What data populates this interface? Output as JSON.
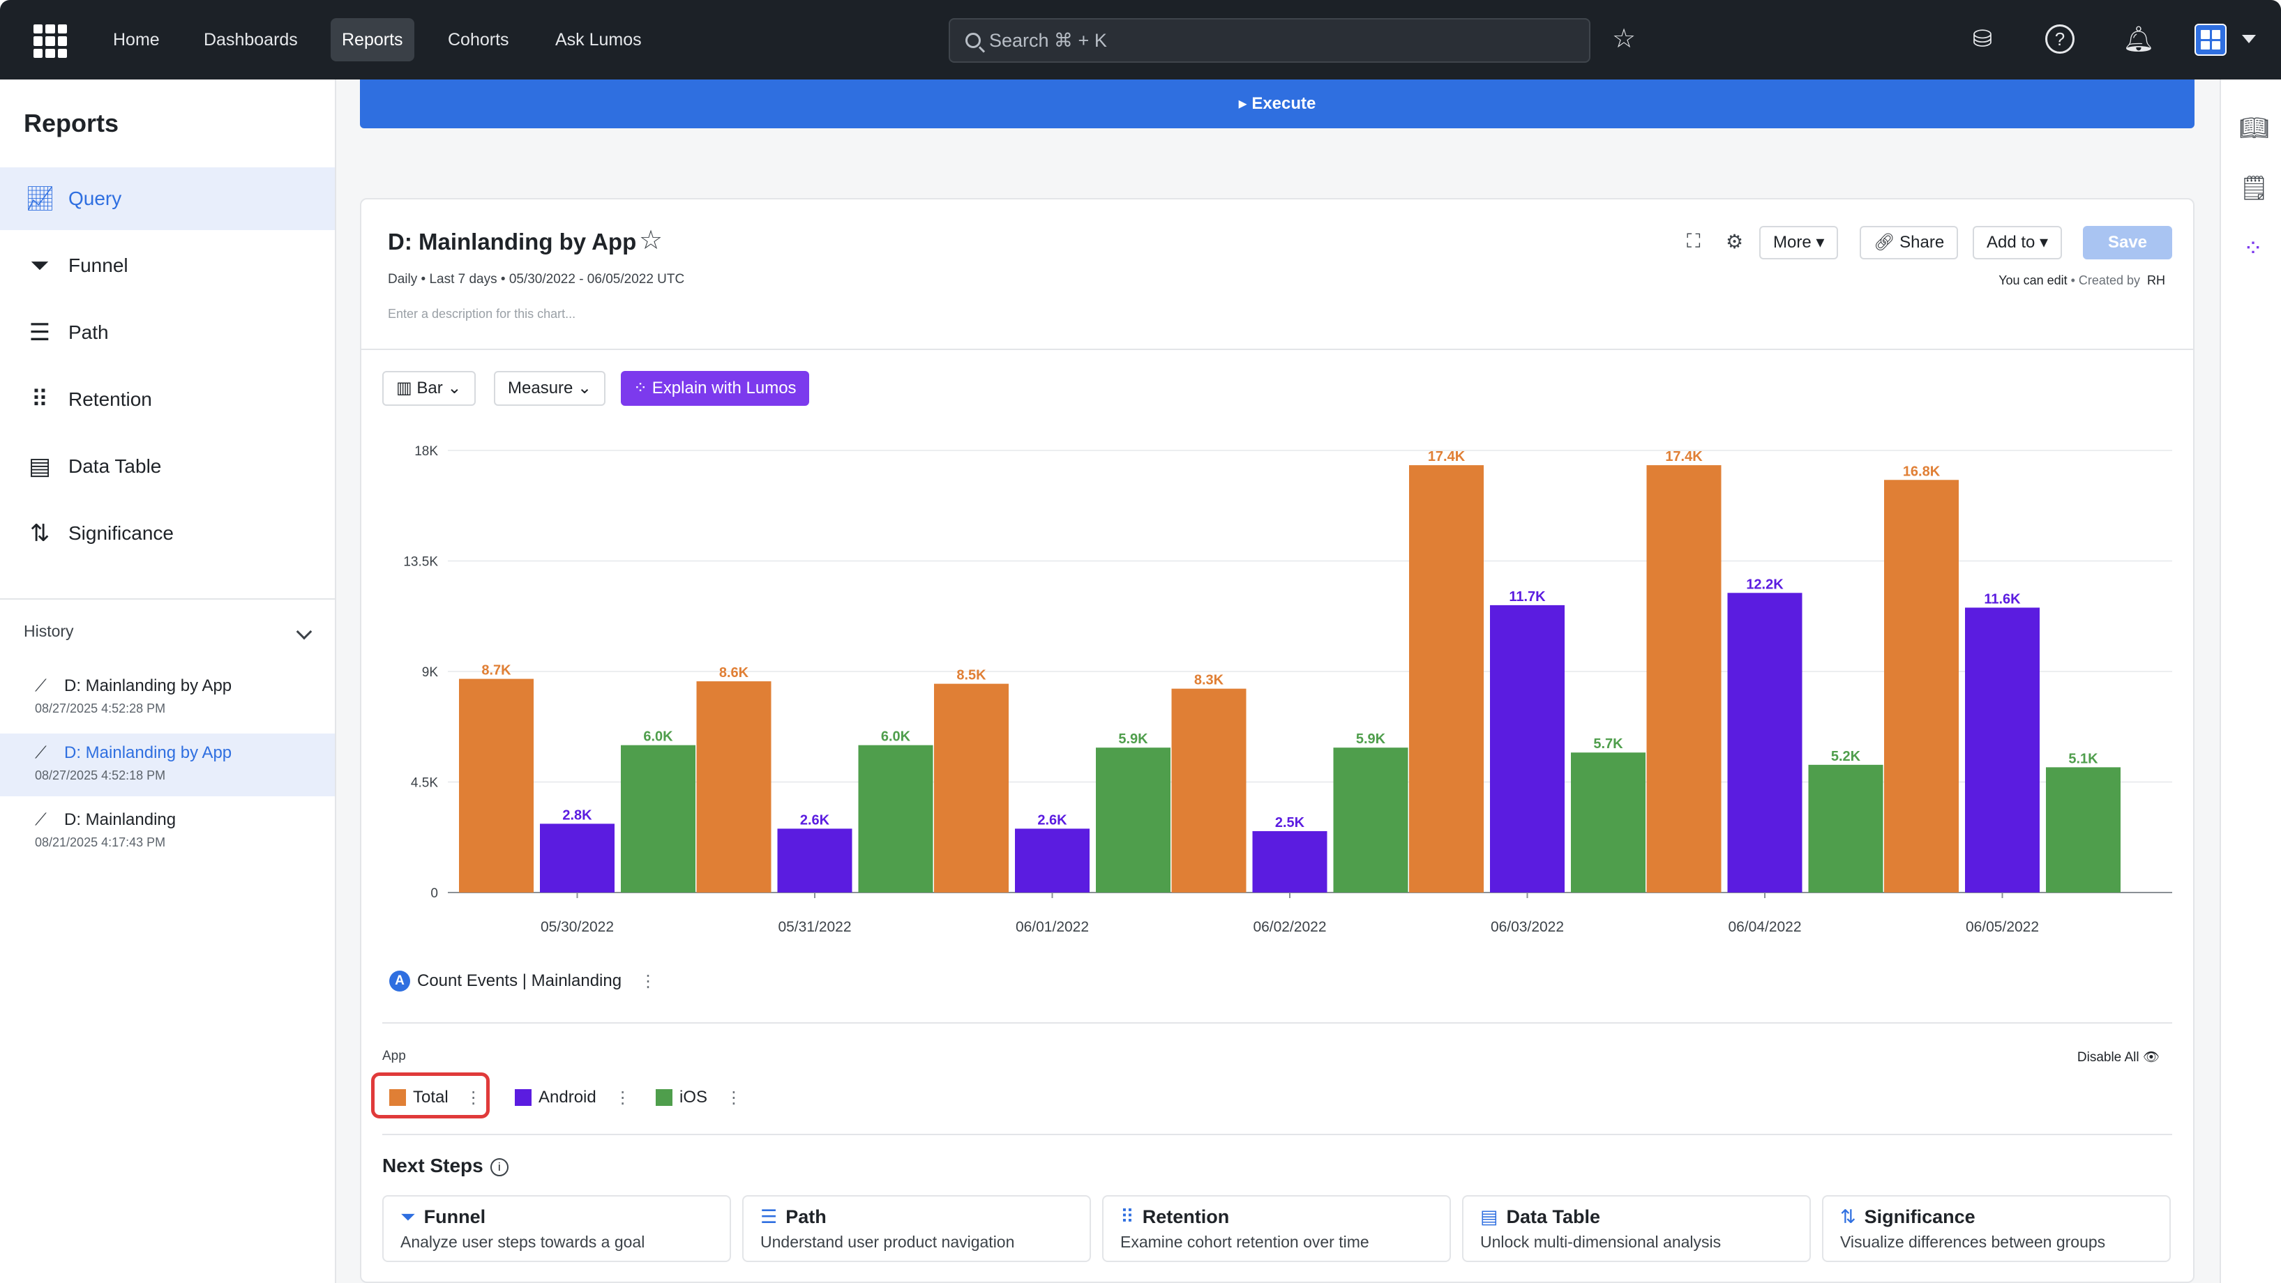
{
  "topbar": {
    "nav": [
      "Home",
      "Dashboards",
      "Reports",
      "Cohorts",
      "Ask Lumos"
    ],
    "active_nav": "Reports",
    "search_placeholder": "Search ⌘ + K"
  },
  "sidebar": {
    "title": "Reports",
    "items": [
      {
        "label": "Query",
        "icon": "line-chart-icon",
        "active": true
      },
      {
        "label": "Funnel",
        "icon": "funnel-icon"
      },
      {
        "label": "Path",
        "icon": "path-icon"
      },
      {
        "label": "Retention",
        "icon": "retention-icon"
      },
      {
        "label": "Data Table",
        "icon": "table-icon"
      },
      {
        "label": "Significance",
        "icon": "significance-icon"
      }
    ],
    "history_label": "History",
    "history": [
      {
        "title": "D: Mainlanding by App",
        "date": "08/27/2025 4:52:28 PM"
      },
      {
        "title": "D: Mainlanding by App",
        "date": "08/27/2025 4:52:18 PM",
        "active": true
      },
      {
        "title": "D: Mainlanding",
        "date": "08/21/2025 4:17:43 PM"
      }
    ]
  },
  "execute_label": "▸ Execute",
  "report": {
    "title": "D: Mainlanding by App",
    "meta": "Daily • Last 7 days • 05/30/2022 - 06/05/2022 UTC",
    "description_placeholder": "Enter a description for this chart...",
    "more_label": "More",
    "share_label": "Share",
    "add_to_label": "Add to",
    "save_label": "Save",
    "edit_note": "You can edit",
    "created_by": "• Created by",
    "creator": "RH",
    "chart_type_label": "Bar",
    "measure_label": "Measure",
    "explain_label": "Explain with Lumos",
    "series_badge": "A",
    "series_label": "Count Events | Mainlanding",
    "group_label": "App",
    "disable_all": "Disable All",
    "legend": [
      {
        "label": "Total",
        "color": "#e07f35"
      },
      {
        "label": "Android",
        "color": "#5b1ce0"
      },
      {
        "label": "iOS",
        "color": "#4f9e4c"
      }
    ],
    "next_steps_title": "Next Steps",
    "next_steps": [
      {
        "title": "Funnel",
        "desc": "Analyze user steps towards a goal",
        "icon": "funnel-icon"
      },
      {
        "title": "Path",
        "desc": "Understand user product navigation",
        "icon": "path-icon"
      },
      {
        "title": "Retention",
        "desc": "Examine cohort retention over time",
        "icon": "retention-icon"
      },
      {
        "title": "Data Table",
        "desc": "Unlock multi-dimensional analysis",
        "icon": "table-icon"
      },
      {
        "title": "Significance",
        "desc": "Visualize differences between groups",
        "icon": "significance-icon"
      }
    ]
  },
  "chart_data": {
    "type": "bar",
    "categories": [
      "05/30/2022",
      "05/31/2022",
      "06/01/2022",
      "06/02/2022",
      "06/03/2022",
      "06/04/2022",
      "06/05/2022"
    ],
    "series": [
      {
        "name": "Total",
        "color": "#e07f35",
        "values": [
          8700,
          8600,
          8500,
          8300,
          17400,
          17400,
          16800
        ],
        "labels": [
          "8.7K",
          "8.6K",
          "8.5K",
          "8.3K",
          "17.4K",
          "17.4K",
          "16.8K"
        ]
      },
      {
        "name": "Android",
        "color": "#5b1ce0",
        "values": [
          2800,
          2600,
          2600,
          2500,
          11700,
          12200,
          11600
        ],
        "labels": [
          "2.8K",
          "2.6K",
          "2.6K",
          "2.5K",
          "11.7K",
          "12.2K",
          "11.6K"
        ]
      },
      {
        "name": "iOS",
        "color": "#4f9e4c",
        "values": [
          6000,
          6000,
          5900,
          5900,
          5700,
          5200,
          5100
        ],
        "labels": [
          "6.0K",
          "6.0K",
          "5.9K",
          "5.9K",
          "5.7K",
          "5.2K",
          "5.1K"
        ]
      }
    ],
    "yticks": [
      "0",
      "4.5K",
      "9K",
      "13.5K",
      "18K"
    ],
    "ytick_values": [
      0,
      4500,
      9000,
      13500,
      18000
    ],
    "ylim": [
      0,
      18000
    ],
    "grid": true
  }
}
